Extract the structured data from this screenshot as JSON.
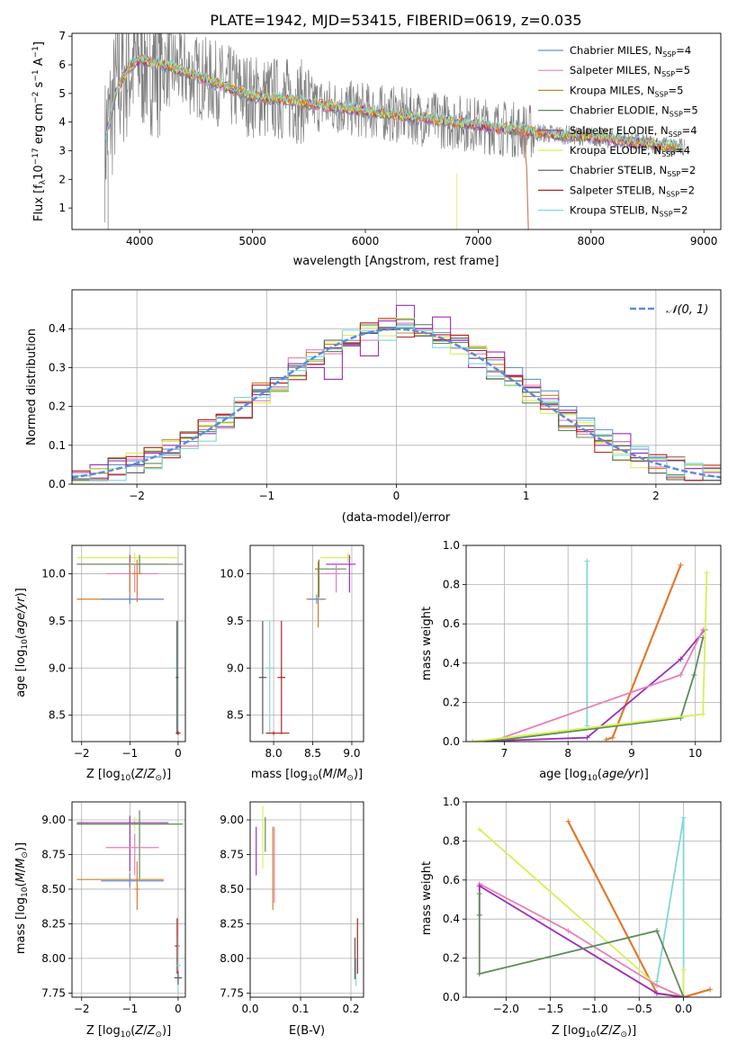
{
  "figure_title": "PLATE=1942, MJD=53415, FIBERID=0619, z=0.035",
  "colors": {
    "chabrier_miles": "#6a8fd8",
    "salpeter_miles": "#e87fb9",
    "kroupa_miles": "#c9832a",
    "chabrier_elodie": "#5e8c5a",
    "salpeter_elodie": "#9b30b8",
    "kroupa_elodie": "#d8ef55",
    "chabrier_stelib": "#555555",
    "salpeter_stelib": "#b22222",
    "kroupa_stelib": "#7fd8d8",
    "data": "#808080",
    "gauss": "#5b8bd9",
    "orange": "#e07a30"
  },
  "legend_labels": [
    "Chabrier MILES, N_{SSP}=4",
    "Salpeter MILES, N_{SSP}=5",
    "Kroupa MILES, N_{SSP}=5",
    "Chabrier ELODIE, N_{SSP}=5",
    "Salpeter ELODIE, N_{SSP}=4",
    "Kroupa ELODIE, N_{SSP}=4",
    "Chabrier STELIB, N_{SSP}=2",
    "Salpeter STELIB, N_{SSP}=2",
    "Kroupa STELIB, N_{SSP}=2"
  ],
  "chart_data": [
    {
      "type": "line",
      "panel": "spectrum",
      "xlabel": "wavelength [Angstrom, rest frame]",
      "ylabel": "Flux [f_λ 10^{−17} erg cm^{−2} s^{−1} A^{−1}]",
      "xlim": [
        3400,
        9150
      ],
      "ylim": [
        0.25,
        7.1
      ],
      "xticks": [
        "4000",
        "5000",
        "6000",
        "7000",
        "8000",
        "9000"
      ],
      "yticks": [
        "1",
        "2",
        "3",
        "4",
        "5",
        "6",
        "7"
      ],
      "series_continuum": {
        "x": [
          3700,
          3800,
          3900,
          4000,
          4100,
          4300,
          4500,
          4800,
          5000,
          5300,
          5600,
          6000,
          6400,
          6800,
          7200,
          7600,
          8000,
          8400,
          8800
        ],
        "y": [
          3.5,
          5.2,
          5.9,
          6.2,
          6.1,
          5.9,
          5.6,
          5.2,
          4.9,
          4.8,
          4.6,
          4.4,
          4.2,
          4.0,
          3.8,
          3.6,
          3.5,
          3.3,
          3.1
        ]
      }
    },
    {
      "type": "line",
      "panel": "residuals",
      "xlabel": "(data-model)/error",
      "ylabel": "Normed distribution",
      "xlim": [
        -2.5,
        2.5
      ],
      "ylim": [
        0,
        0.5
      ],
      "xticks": [
        "−2",
        "−1",
        "0",
        "1",
        "2"
      ],
      "yticks": [
        "0.0",
        "0.1",
        "0.2",
        "0.3",
        "0.4"
      ],
      "legend": "𝒩(0, 1)",
      "series": [
        {
          "name": "Chabrier MILES",
          "values": [
            0.03,
            0.04,
            0.05,
            0.06,
            0.07,
            0.09,
            0.11,
            0.14,
            0.17,
            0.2,
            0.24,
            0.27,
            0.3,
            0.32,
            0.35,
            0.37,
            0.39,
            0.4,
            0.41,
            0.4,
            0.39,
            0.37,
            0.35,
            0.32,
            0.3,
            0.27,
            0.24,
            0.2,
            0.17,
            0.14,
            0.11,
            0.09,
            0.07,
            0.06,
            0.05,
            0.04
          ]
        },
        {
          "name": "Salpeter ELODIE",
          "values": [
            0.03,
            0.05,
            0.06,
            0.05,
            0.08,
            0.1,
            0.12,
            0.13,
            0.18,
            0.21,
            0.23,
            0.26,
            0.31,
            0.3,
            0.27,
            0.36,
            0.33,
            0.42,
            0.46,
            0.4,
            0.43,
            0.37,
            0.3,
            0.34,
            0.28,
            0.25,
            0.22,
            0.19,
            0.14,
            0.1,
            0.13,
            0.08,
            0.06,
            0.07,
            0.04,
            0.03
          ]
        }
      ],
      "gaussian_sigma": 1
    },
    {
      "type": "scatter",
      "panel": "age_vs_Z",
      "xlabel": "Z [log10(Z/Z⊙)]",
      "ylabel": "age  [log10(age/yr)]",
      "xlim": [
        -2.2,
        0.15
      ],
      "ylim": [
        8.22,
        10.3
      ],
      "xticks": [
        "−2",
        "−1",
        "0"
      ],
      "yticks": [
        "8.5",
        "9.0",
        "9.5",
        "10.0"
      ]
    },
    {
      "type": "scatter",
      "panel": "age_vs_mass",
      "xlabel": "mass [log10(M/M⊙)]",
      "ylabel": "",
      "xlim": [
        7.7,
        9.15
      ],
      "ylim": [
        8.22,
        10.3
      ],
      "xticks": [
        "8.0",
        "8.5",
        "9.0"
      ],
      "yticks": [
        "8.5",
        "9.0",
        "9.5",
        "10.0"
      ]
    },
    {
      "type": "line",
      "panel": "mass_weight_vs_age",
      "xlabel": "age  [log10(age/yr)]",
      "ylabel": "mass weight",
      "xlim": [
        6.4,
        10.4
      ],
      "ylim": [
        0,
        1
      ],
      "xticks": [
        "7",
        "8",
        "9",
        "10"
      ],
      "yticks": [
        "0.0",
        "0.2",
        "0.4",
        "0.6",
        "0.8",
        "1.0"
      ],
      "series": [
        {
          "name": "Kroupa STELIB",
          "x": [
            8.3,
            8.3
          ],
          "y": [
            0.08,
            0.92
          ]
        },
        {
          "name": "Kroupa MILES",
          "x": [
            8.6,
            8.7,
            9.77
          ],
          "y": [
            0.01,
            0.02,
            0.9
          ]
        },
        {
          "name": "Salpeter ELODIE",
          "x": [
            6.5,
            8.3,
            9.77,
            10.15
          ],
          "y": [
            0.0,
            0.02,
            0.42,
            0.57
          ]
        },
        {
          "name": "Salpeter MILES",
          "x": [
            6.8,
            9.77,
            10.12
          ],
          "y": [
            0.0,
            0.34,
            0.57
          ]
        },
        {
          "name": "Chabrier ELODIE",
          "x": [
            6.5,
            7.0,
            9.77,
            9.98,
            10.12
          ],
          "y": [
            0.0,
            0.01,
            0.12,
            0.34,
            0.53
          ]
        },
        {
          "name": "Kroupa ELODIE",
          "x": [
            6.5,
            10.12,
            10.18
          ],
          "y": [
            0.0,
            0.14,
            0.86
          ]
        }
      ]
    },
    {
      "type": "scatter",
      "panel": "mass_vs_Z",
      "xlabel": "Z [log10(Z/Z⊙)]",
      "ylabel": "mass [log10(M/M⊙)]",
      "xlim": [
        -2.2,
        0.15
      ],
      "ylim": [
        7.72,
        9.13
      ],
      "xticks": [
        "−2",
        "−1",
        "0"
      ],
      "yticks": [
        "7.75",
        "8.00",
        "8.25",
        "8.50",
        "8.75",
        "9.00"
      ]
    },
    {
      "type": "scatter",
      "panel": "mass_vs_EBV",
      "xlabel": "E(B-V)",
      "ylabel": "",
      "xlim": [
        0,
        0.225
      ],
      "ylim": [
        7.72,
        9.13
      ],
      "xticks": [
        "0.0",
        "0.1",
        "0.2"
      ],
      "yticks": [
        "7.75",
        "8.00",
        "8.25",
        "8.50",
        "8.75",
        "9.00"
      ]
    },
    {
      "type": "line",
      "panel": "mass_weight_vs_Z",
      "xlabel": "Z [log10(Z/Z⊙)]",
      "ylabel": "mass weight",
      "xlim": [
        -2.45,
        0.42
      ],
      "ylim": [
        0,
        1
      ],
      "xticks": [
        "−2.0",
        "−1.5",
        "−1.0",
        "−0.5",
        "0.0"
      ],
      "yticks": [
        "0.0",
        "0.2",
        "0.4",
        "0.6",
        "0.8",
        "1.0"
      ],
      "series": [
        {
          "name": "Kroupa STELIB",
          "x": [
            -0.3,
            0.0,
            0.0
          ],
          "y": [
            0.08,
            0.92,
            0.0
          ]
        },
        {
          "name": "Kroupa MILES",
          "x": [
            -1.3,
            -0.3,
            0.0,
            0.3
          ],
          "y": [
            0.9,
            0.02,
            0.0,
            0.04
          ]
        },
        {
          "name": "Kroupa ELODIE",
          "x": [
            -2.3,
            -0.3,
            0.0,
            0.0
          ],
          "y": [
            0.86,
            0.06,
            0.0,
            0.14
          ]
        },
        {
          "name": "Salpeter MILES",
          "x": [
            -2.3,
            -1.3,
            -0.3,
            0.0
          ],
          "y": [
            0.58,
            0.34,
            0.06,
            0.0
          ]
        },
        {
          "name": "Salpeter ELODIE",
          "x": [
            -2.3,
            -2.3,
            -0.3,
            0.0
          ],
          "y": [
            0.42,
            0.57,
            0.02,
            0.0
          ]
        },
        {
          "name": "Chabrier ELODIE",
          "x": [
            -2.3,
            -2.3,
            -0.3,
            0.0
          ],
          "y": [
            0.53,
            0.12,
            0.34,
            0.0
          ]
        }
      ]
    }
  ]
}
